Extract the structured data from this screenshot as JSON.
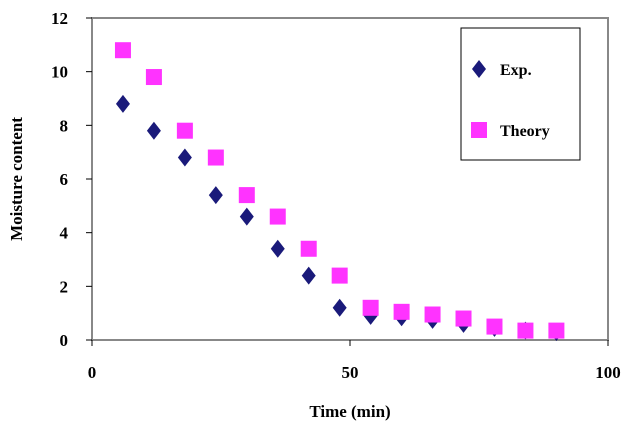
{
  "chart_data": {
    "type": "scatter",
    "title": "",
    "xlabel": "Time (min)",
    "ylabel": "Moisture content",
    "xlim": [
      0,
      100
    ],
    "ylim": [
      0,
      12
    ],
    "x_ticks": [
      0,
      50,
      100
    ],
    "y_ticks": [
      0,
      2,
      4,
      6,
      8,
      10,
      12
    ],
    "x_tick_labels": [
      "0",
      "50",
      "100"
    ],
    "y_tick_labels": [
      "0",
      "2",
      "4",
      "6",
      "8",
      "10",
      "12"
    ],
    "grid": false,
    "legend_position": "top-right",
    "series": [
      {
        "name": "Exp.",
        "marker": "diamond",
        "color": "#1a1a7a",
        "points": [
          {
            "x": 6,
            "y": 8.8
          },
          {
            "x": 12,
            "y": 7.8
          },
          {
            "x": 18,
            "y": 6.8
          },
          {
            "x": 24,
            "y": 5.4
          },
          {
            "x": 30,
            "y": 4.6
          },
          {
            "x": 36,
            "y": 3.4
          },
          {
            "x": 42,
            "y": 2.4
          },
          {
            "x": 48,
            "y": 1.2
          },
          {
            "x": 54,
            "y": 0.9
          },
          {
            "x": 60,
            "y": 0.85
          },
          {
            "x": 66,
            "y": 0.75
          },
          {
            "x": 72,
            "y": 0.6
          },
          {
            "x": 78,
            "y": 0.45
          },
          {
            "x": 84,
            "y": 0.35
          },
          {
            "x": 90,
            "y": 0.3
          }
        ]
      },
      {
        "name": "Theory",
        "marker": "square",
        "color": "#ff33ff",
        "points": [
          {
            "x": 6,
            "y": 10.8
          },
          {
            "x": 12,
            "y": 9.8
          },
          {
            "x": 18,
            "y": 7.8
          },
          {
            "x": 24,
            "y": 6.8
          },
          {
            "x": 30,
            "y": 5.4
          },
          {
            "x": 36,
            "y": 4.6
          },
          {
            "x": 42,
            "y": 3.4
          },
          {
            "x": 48,
            "y": 2.4
          },
          {
            "x": 54,
            "y": 1.2
          },
          {
            "x": 60,
            "y": 1.05
          },
          {
            "x": 66,
            "y": 0.95
          },
          {
            "x": 72,
            "y": 0.8
          },
          {
            "x": 78,
            "y": 0.5
          },
          {
            "x": 84,
            "y": 0.35
          },
          {
            "x": 90,
            "y": 0.35
          }
        ]
      }
    ]
  }
}
